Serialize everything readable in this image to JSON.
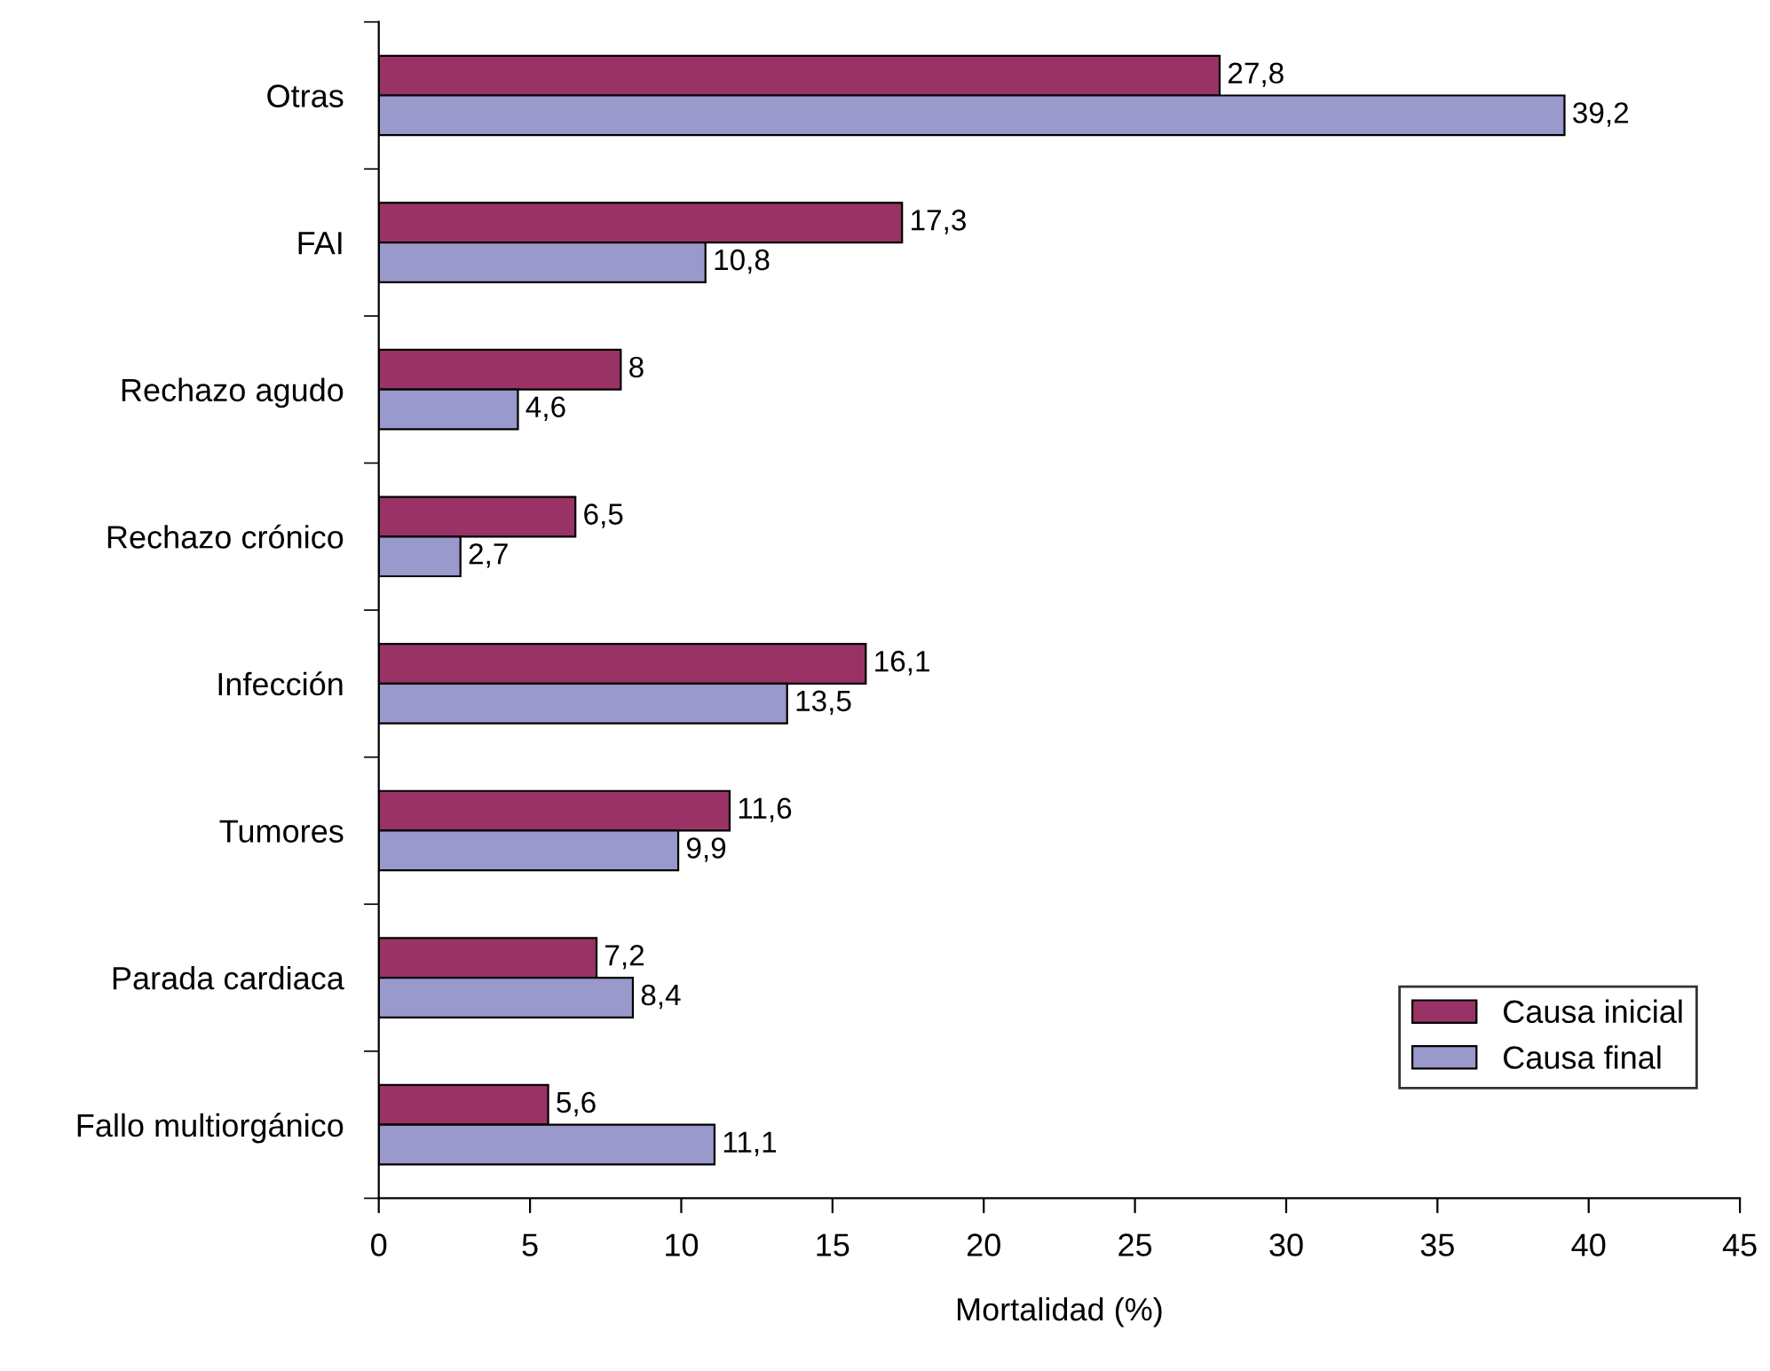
{
  "chart_data": {
    "type": "bar",
    "orientation": "horizontal",
    "xlabel": "Mortalidad (%)",
    "categories": [
      "Otras",
      "FAI",
      "Rechazo agudo",
      "Rechazo crónico",
      "Infección",
      "Tumores",
      "Parada cardiaca",
      "Fallo multiorgánico"
    ],
    "series": [
      {
        "name": "Causa inicial",
        "color": "#993366",
        "values": [
          27.8,
          17.3,
          8,
          6.5,
          16.1,
          11.6,
          7.2,
          5.6
        ],
        "value_labels": [
          "27,8",
          "17,3",
          "8",
          "6,5",
          "16,1",
          "11,6",
          "7,2",
          "5,6"
        ]
      },
      {
        "name": "Causa final",
        "color": "#9999cc",
        "values": [
          39.2,
          10.8,
          4.6,
          2.7,
          13.5,
          9.9,
          8.4,
          11.1
        ],
        "value_labels": [
          "39,2",
          "10,8",
          "4,6",
          "2,7",
          "13,5",
          "9,9",
          "8,4",
          "11,1"
        ]
      }
    ],
    "xlim": [
      0,
      45
    ],
    "xticks": [
      0,
      5,
      10,
      15,
      20,
      25,
      30,
      35,
      40,
      45
    ],
    "grid": false,
    "legend": "bottom right"
  }
}
